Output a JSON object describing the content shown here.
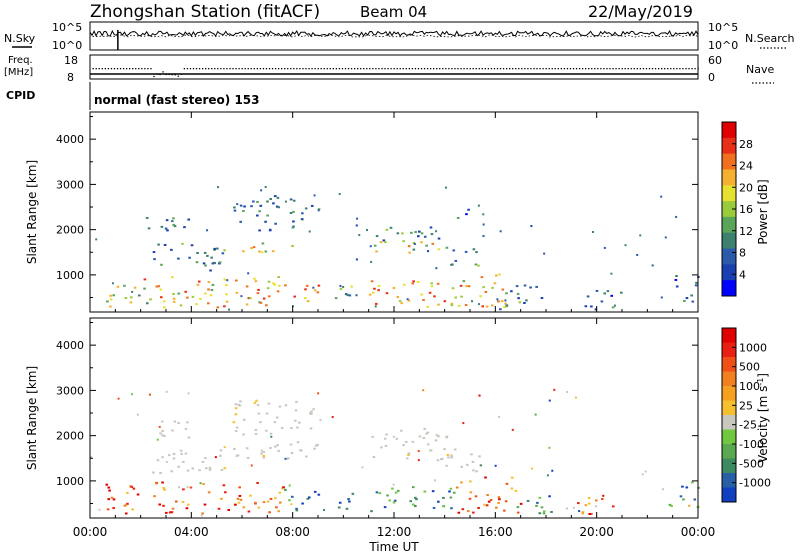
{
  "header": {
    "title": "Zhongshan Station (fitACF)",
    "beam": "Beam 04",
    "date": "22/May/2019"
  },
  "top_panels": {
    "nsky_label": "N.Sky",
    "nsky_ticks": [
      "10^5",
      "10^0"
    ],
    "nsearch_label": "N.Search",
    "nsearch_ticks": [
      "10^5",
      "10^0"
    ],
    "freq_label": "Freq.",
    "freq_unit": "[MHz]",
    "freq_ticks": [
      "18",
      "8"
    ],
    "nave_label": "Nave",
    "nave_ticks": [
      "60",
      "0"
    ],
    "cpid_label": "CPID",
    "cpid_value": "normal (fast stereo) 153"
  },
  "chart_data": [
    {
      "type": "heatmap",
      "name": "power-panel",
      "ylabel": "Slant Range [km]",
      "yticks": [
        "4000",
        "3000",
        "2000",
        "1000"
      ],
      "yticks_values": [
        4000,
        3000,
        2000,
        1000
      ],
      "ylim": [
        180,
        4600
      ],
      "xlim_hours": [
        0,
        24
      ],
      "colorbar": {
        "label": "Power [dB]",
        "ticks": [
          "28",
          "24",
          "20",
          "16",
          "12",
          "8",
          "4"
        ],
        "colors": [
          "#0000ff",
          "#1a3fb0",
          "#2a5aa8",
          "#3d8070",
          "#5aa55a",
          "#9acb3c",
          "#e6e030",
          "#f5b030",
          "#f07020",
          "#e83018",
          "#e00000"
        ]
      },
      "blobs": [
        {
          "t0": 2.0,
          "t1": 3.2,
          "r0": 1980,
          "r1": 2320,
          "v": 6
        },
        {
          "t0": 2.8,
          "t1": 4.0,
          "r0": 1950,
          "r1": 2300,
          "v": 6
        },
        {
          "t0": 5.6,
          "t1": 9.0,
          "r0": 2000,
          "r1": 2800,
          "v": 6
        },
        {
          "t0": 5.6,
          "t1": 8.9,
          "r0": 1520,
          "r1": 1720,
          "v": 16
        },
        {
          "t0": 2.4,
          "t1": 5.4,
          "r0": 1100,
          "r1": 1750,
          "v": 7
        },
        {
          "t0": 11.1,
          "t1": 14.0,
          "r0": 1750,
          "r1": 2150,
          "v": 8
        },
        {
          "t0": 11.1,
          "t1": 14.4,
          "r0": 1500,
          "r1": 1750,
          "v": 16
        },
        {
          "t0": 14.0,
          "t1": 15.4,
          "r0": 1200,
          "r1": 1700,
          "v": 12
        },
        {
          "t0": 14.4,
          "t1": 15.0,
          "r0": 2200,
          "r1": 2600,
          "v": 8
        },
        {
          "t0": 0.6,
          "t1": 2.6,
          "r0": 300,
          "r1": 800,
          "v": 16
        },
        {
          "t0": 2.0,
          "t1": 7.6,
          "r0": 300,
          "r1": 1000,
          "v": 20
        },
        {
          "t0": 7.4,
          "t1": 9.0,
          "r0": 350,
          "r1": 800,
          "v": 22
        },
        {
          "t0": 9.6,
          "t1": 10.6,
          "r0": 400,
          "r1": 800,
          "v": 12
        },
        {
          "t0": 11.0,
          "t1": 14.2,
          "r0": 300,
          "r1": 900,
          "v": 22
        },
        {
          "t0": 14.2,
          "t1": 16.6,
          "r0": 300,
          "r1": 1100,
          "v": 20
        },
        {
          "t0": 16.0,
          "t1": 18.0,
          "r0": 250,
          "r1": 800,
          "v": 8
        },
        {
          "t0": 19.2,
          "t1": 21.0,
          "r0": 250,
          "r1": 700,
          "v": 8
        },
        {
          "t0": 22.8,
          "t1": 24.0,
          "r0": 400,
          "r1": 1000,
          "v": 6
        }
      ]
    },
    {
      "type": "heatmap",
      "name": "velocity-panel",
      "ylabel": "Slant Range [km]",
      "yticks": [
        "4000",
        "3000",
        "2000",
        "1000"
      ],
      "yticks_values": [
        4000,
        3000,
        2000,
        1000
      ],
      "ylim": [
        180,
        4600
      ],
      "xlim_hours": [
        0,
        24
      ],
      "xticks": [
        "00:00",
        "04:00",
        "08:00",
        "12:00",
        "16:00",
        "20:00",
        "00:00"
      ],
      "xticks_values": [
        0,
        4,
        8,
        12,
        16,
        20,
        24
      ],
      "xlabel": "Time UT",
      "colorbar": {
        "label": "Velocity [m s",
        "label_sup": "-1",
        "label_end": "]",
        "ticks": [
          "1000",
          "500",
          "100",
          "25",
          "-25",
          "-100",
          "-500",
          "-1000"
        ],
        "colors": [
          "#1040c0",
          "#2860a8",
          "#3d8a60",
          "#5aa850",
          "#70c840",
          "#c8c8c0",
          "#f5c030",
          "#f5a020",
          "#f08020",
          "#f05018",
          "#e82010",
          "#e00000"
        ]
      },
      "blobs": [
        {
          "t0": 2.0,
          "t1": 4.0,
          "r0": 1950,
          "r1": 2350,
          "v": "grey"
        },
        {
          "t0": 5.6,
          "t1": 9.0,
          "r0": 1500,
          "r1": 2800,
          "v": "grey"
        },
        {
          "t0": 11.1,
          "t1": 14.4,
          "r0": 1450,
          "r1": 2200,
          "v": "grey"
        },
        {
          "t0": 14.0,
          "t1": 15.4,
          "r0": 1200,
          "r1": 1700,
          "v": "grey"
        },
        {
          "t0": 2.4,
          "t1": 5.4,
          "r0": 1100,
          "r1": 1700,
          "v": "grey"
        },
        {
          "t0": 0.6,
          "t1": 7.8,
          "r0": 300,
          "r1": 1000,
          "v": "neg"
        },
        {
          "t0": 7.6,
          "t1": 9.0,
          "r0": 350,
          "r1": 850,
          "v": "pos"
        },
        {
          "t0": 9.6,
          "t1": 10.6,
          "r0": 400,
          "r1": 800,
          "v": "pos"
        },
        {
          "t0": 11.0,
          "t1": 14.4,
          "r0": 300,
          "r1": 900,
          "v": "pos"
        },
        {
          "t0": 14.4,
          "t1": 17.0,
          "r0": 300,
          "r1": 1100,
          "v": "neg"
        },
        {
          "t0": 16.6,
          "t1": 18.4,
          "r0": 250,
          "r1": 700,
          "v": "pos"
        },
        {
          "t0": 19.2,
          "t1": 21.0,
          "r0": 250,
          "r1": 700,
          "v": "neg"
        },
        {
          "t0": 22.8,
          "t1": 24.0,
          "r0": 400,
          "r1": 1000,
          "v": "pos"
        }
      ]
    }
  ]
}
